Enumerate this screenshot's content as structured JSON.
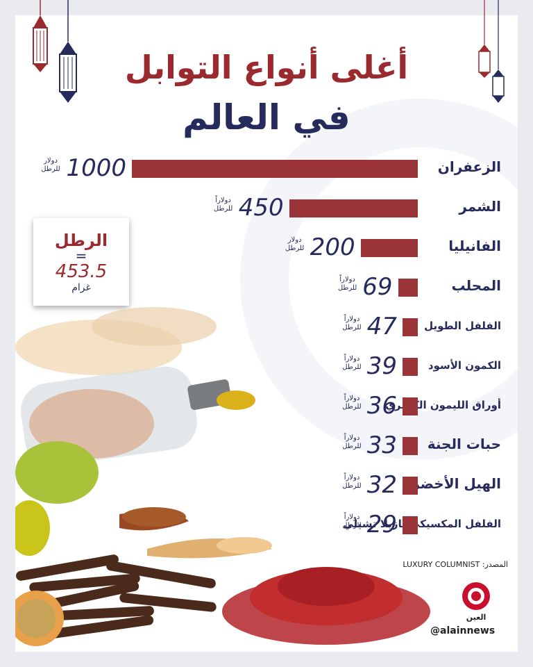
{
  "title_line1": "أغلى أنواع التوابل",
  "title_line2": "في العالم",
  "chart_data": {
    "type": "bar",
    "orientation": "horizontal",
    "title": "أغلى أنواع التوابل في العالم",
    "categories": [
      "الزعفران",
      "الشمر",
      "الفانيليا",
      "المحلب",
      "الفلفل الطويل",
      "الكمون الأسود",
      "أوراق الليمون الكفيري",
      "حبات الجنة",
      "الهيل الأخضر",
      "الفلفل المكسيكي بازيلا تشيلي"
    ],
    "values": [
      1000,
      450,
      200,
      69,
      47,
      39,
      36,
      33,
      32,
      29
    ],
    "units": [
      "دولار للرطل",
      "دولاراً للرطل",
      "دولار للرطل",
      "دولاراً للرطل",
      "دولاراً للرطل",
      "دولاراً للرطل",
      "دولاراً للرطل",
      "دولاراً للرطل",
      "دولاراً للرطل",
      "دولاراً للرطل"
    ],
    "bar_color": "#9a3438",
    "xlim": [
      0,
      1000
    ]
  },
  "conversion_box": {
    "title": "الرطل",
    "equals": "=",
    "value": "453.5",
    "unit": "غرام"
  },
  "source": "المصدر: LUXURY COLUMNIST",
  "logo_text": "العين",
  "handle": "@alainnews",
  "colors": {
    "accent_red": "#9a2a2d",
    "navy": "#262a5c"
  }
}
